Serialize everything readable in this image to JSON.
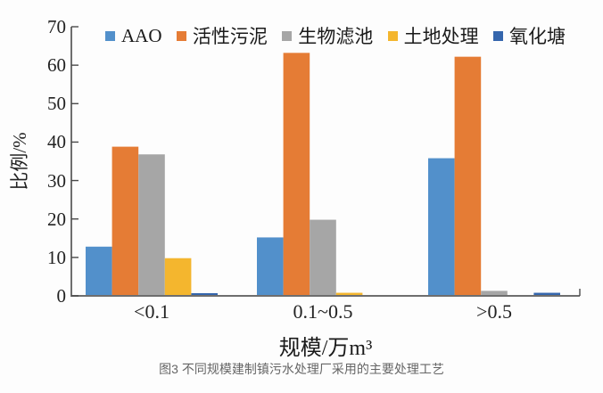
{
  "figure": {
    "caption": "图3 不同规模建制镇污水处理厂采用的主要处理工艺"
  },
  "chart_data": {
    "type": "bar",
    "title": "",
    "categories": [
      "<0.1",
      "0.1~0.5",
      ">0.5"
    ],
    "series": [
      {
        "name": "AAO",
        "color": "#5290cb",
        "values": [
          12.8,
          15.2,
          35.8
        ]
      },
      {
        "name": "活性污泥",
        "color": "#e57c35",
        "values": [
          38.8,
          63.2,
          62.2
        ]
      },
      {
        "name": "生物滤池",
        "color": "#a6a6a6",
        "values": [
          36.8,
          19.8,
          1.3
        ]
      },
      {
        "name": "土地处理",
        "color": "#f4b62e",
        "values": [
          9.8,
          0.8,
          0
        ]
      },
      {
        "name": "氧化塘",
        "color": "#3566ad",
        "values": [
          0.7,
          0,
          0.8
        ]
      }
    ],
    "xlabel": "规模/万m³",
    "ylabel": "比例/%",
    "ylim": [
      0,
      70
    ],
    "yticks": [
      0,
      10,
      20,
      30,
      40,
      50,
      60,
      70
    ],
    "grid": false,
    "legend_position": "top",
    "colors": {
      "axis": "#4a4a4a",
      "baseline": "#6e6e6e",
      "text": "#222222",
      "caption_text": "#666666",
      "background": "#fdfdfd"
    }
  }
}
